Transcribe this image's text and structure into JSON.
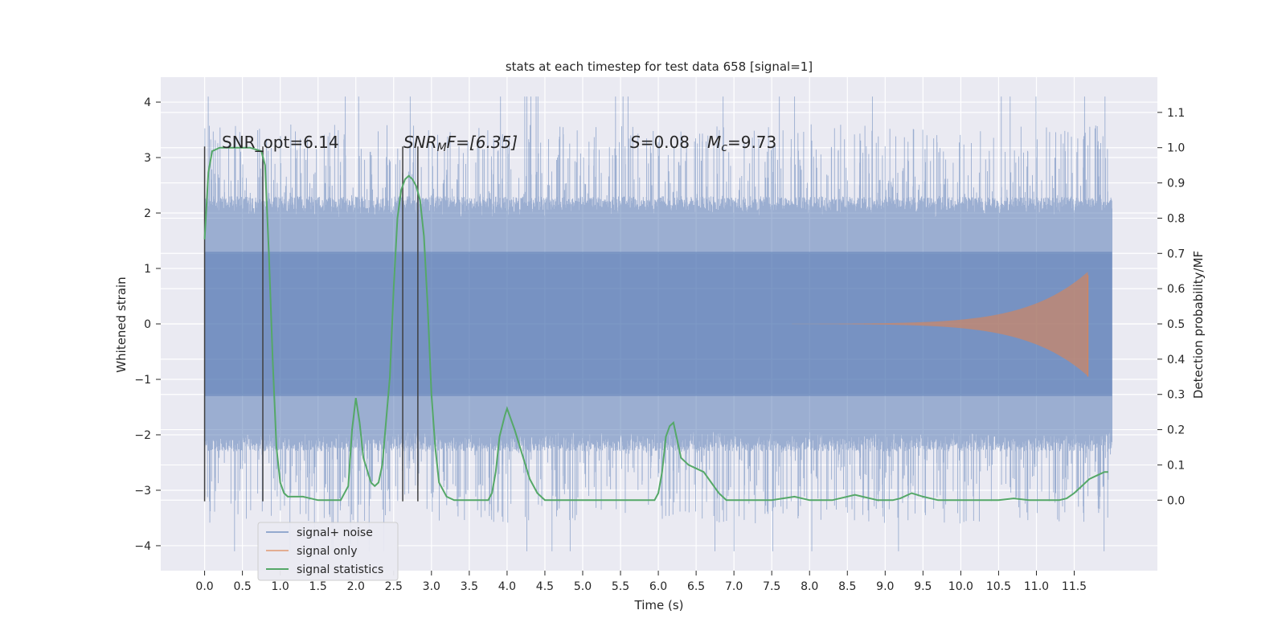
{
  "chart_data": {
    "type": "line",
    "title": "stats at each timestep for test data 658 [signal=1]",
    "xlabel": "Time (s)",
    "ylabel": "Whitened strain",
    "ylabel_right": "Detection probability/MF",
    "xlim": [
      -0.58,
      12.6
    ],
    "ylim": [
      -4.45,
      4.45
    ],
    "ylim_right": [
      -0.2,
      1.2
    ],
    "x_ticks": [
      "0.0",
      "0.5",
      "1.0",
      "1.5",
      "2.0",
      "2.5",
      "3.0",
      "3.5",
      "4.0",
      "4.5",
      "5.0",
      "5.5",
      "6.0",
      "6.5",
      "7.0",
      "7.5",
      "8.0",
      "8.5",
      "9.0",
      "9.5",
      "10.0",
      "10.5",
      "11.0",
      "11.5"
    ],
    "y_ticks": [
      4,
      3,
      2,
      1,
      0,
      -1,
      -2,
      -3,
      -4
    ],
    "y_tick_labels": [
      "4",
      "3",
      "2",
      "1",
      "0",
      "−1",
      "−2",
      "−3",
      "−4"
    ],
    "y_ticks_right": [
      1.1,
      1.0,
      0.9,
      0.8,
      0.7,
      0.6,
      0.5,
      0.4,
      0.3,
      0.2,
      0.1,
      0.0
    ],
    "y_tick_labels_right": [
      "1.1",
      "1.0",
      "0.9",
      "0.8",
      "0.7",
      "0.6",
      "0.5",
      "0.4",
      "0.3",
      "0.2",
      "0.1",
      "0.0"
    ],
    "grid": true,
    "legend": {
      "position": "lower-left",
      "entries": [
        "signal+ noise",
        "signal only",
        "signal statistics"
      ]
    },
    "colors": {
      "noise": "#4c72b0",
      "signal": "#dd8452",
      "stats": "#55a868",
      "background": "#eaeaf2",
      "marker": "#404040"
    },
    "annotations": {
      "snr_opt": "SNR_opt=6.14",
      "snr_mf_main": "SNR",
      "snr_mf_sub": "M",
      "snr_mf_rest": "F=[6.35]",
      "s_main": "S",
      "s_rest": "=0.08",
      "mc_main": "M",
      "mc_sub": "c",
      "mc_rest": "=9.73"
    },
    "vertical_markers": [
      0.0,
      0.77,
      2.62,
      2.82
    ],
    "marker_range": [
      -3.2,
      3.2
    ],
    "series": [
      {
        "name": "signal+ noise",
        "kind": "noise",
        "x_range": [
          0.0,
          12.0
        ],
        "samples": 4000,
        "bulk_amplitude": 1.9,
        "outer_amplitude": 1.3,
        "peak_range": [
          2.0,
          3.6
        ],
        "max_extent": [
          -4.1,
          4.1
        ]
      },
      {
        "name": "signal only",
        "kind": "chirp",
        "x_start": 7.2,
        "x_end": 11.68,
        "envelope_start": 0.0,
        "envelope_end": 0.88
      },
      {
        "name": "signal statistics",
        "kind": "line",
        "axis": "right",
        "points": [
          [
            0.0,
            0.74
          ],
          [
            0.05,
            0.93
          ],
          [
            0.1,
            0.99
          ],
          [
            0.2,
            1.0
          ],
          [
            0.4,
            1.0
          ],
          [
            0.6,
            1.0
          ],
          [
            0.75,
            0.99
          ],
          [
            0.8,
            0.95
          ],
          [
            0.85,
            0.7
          ],
          [
            0.9,
            0.4
          ],
          [
            0.95,
            0.15
          ],
          [
            1.0,
            0.05
          ],
          [
            1.05,
            0.02
          ],
          [
            1.1,
            0.01
          ],
          [
            1.3,
            0.01
          ],
          [
            1.5,
            0.0
          ],
          [
            1.7,
            0.0
          ],
          [
            1.8,
            0.0
          ],
          [
            1.9,
            0.04
          ],
          [
            1.95,
            0.2
          ],
          [
            2.0,
            0.29
          ],
          [
            2.05,
            0.22
          ],
          [
            2.1,
            0.12
          ],
          [
            2.2,
            0.05
          ],
          [
            2.25,
            0.04
          ],
          [
            2.3,
            0.05
          ],
          [
            2.35,
            0.1
          ],
          [
            2.45,
            0.35
          ],
          [
            2.5,
            0.6
          ],
          [
            2.55,
            0.8
          ],
          [
            2.6,
            0.88
          ],
          [
            2.65,
            0.91
          ],
          [
            2.7,
            0.92
          ],
          [
            2.75,
            0.91
          ],
          [
            2.8,
            0.89
          ],
          [
            2.85,
            0.85
          ],
          [
            2.9,
            0.75
          ],
          [
            2.95,
            0.55
          ],
          [
            3.0,
            0.3
          ],
          [
            3.05,
            0.15
          ],
          [
            3.1,
            0.05
          ],
          [
            3.2,
            0.01
          ],
          [
            3.3,
            0.0
          ],
          [
            3.6,
            0.0
          ],
          [
            3.75,
            0.0
          ],
          [
            3.8,
            0.02
          ],
          [
            3.85,
            0.08
          ],
          [
            3.9,
            0.18
          ],
          [
            3.97,
            0.24
          ],
          [
            4.0,
            0.26
          ],
          [
            4.05,
            0.23
          ],
          [
            4.1,
            0.2
          ],
          [
            4.2,
            0.13
          ],
          [
            4.3,
            0.06
          ],
          [
            4.4,
            0.02
          ],
          [
            4.5,
            0.0
          ],
          [
            5.0,
            0.0
          ],
          [
            5.25,
            0.0
          ],
          [
            5.5,
            0.0
          ],
          [
            5.95,
            0.0
          ],
          [
            6.0,
            0.02
          ],
          [
            6.05,
            0.08
          ],
          [
            6.1,
            0.18
          ],
          [
            6.15,
            0.21
          ],
          [
            6.2,
            0.22
          ],
          [
            6.25,
            0.17
          ],
          [
            6.3,
            0.12
          ],
          [
            6.4,
            0.1
          ],
          [
            6.5,
            0.09
          ],
          [
            6.6,
            0.08
          ],
          [
            6.7,
            0.05
          ],
          [
            6.8,
            0.02
          ],
          [
            6.9,
            0.0
          ],
          [
            7.0,
            0.0
          ],
          [
            7.5,
            0.0
          ],
          [
            7.8,
            0.01
          ],
          [
            8.0,
            0.0
          ],
          [
            8.3,
            0.0
          ],
          [
            8.6,
            0.015
          ],
          [
            8.7,
            0.01
          ],
          [
            8.9,
            0.0
          ],
          [
            9.1,
            0.0
          ],
          [
            9.2,
            0.005
          ],
          [
            9.35,
            0.02
          ],
          [
            9.5,
            0.01
          ],
          [
            9.7,
            0.0
          ],
          [
            10.2,
            0.0
          ],
          [
            10.5,
            0.0
          ],
          [
            10.7,
            0.005
          ],
          [
            10.9,
            0.0
          ],
          [
            11.3,
            0.0
          ],
          [
            11.4,
            0.005
          ],
          [
            11.5,
            0.02
          ],
          [
            11.6,
            0.04
          ],
          [
            11.7,
            0.06
          ],
          [
            11.8,
            0.07
          ],
          [
            11.9,
            0.08
          ],
          [
            11.95,
            0.08
          ]
        ]
      }
    ]
  }
}
